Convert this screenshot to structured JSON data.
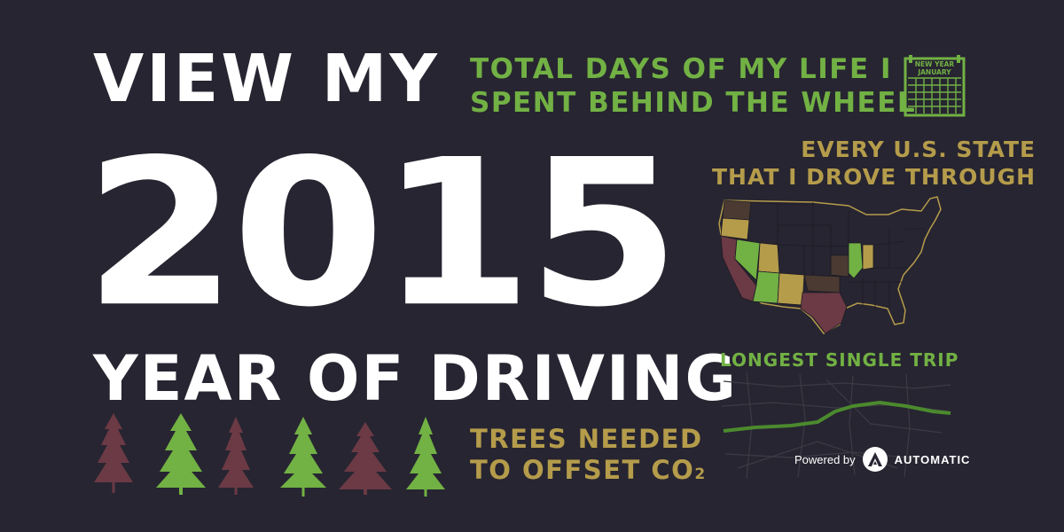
{
  "headline": {
    "line1": "VIEW MY",
    "year": "2015",
    "line2": "YEAR OF DRIVING"
  },
  "stats": {
    "days_line1": "TOTAL DAYS OF MY LIFE I",
    "days_line2": "SPENT BEHIND THE WHEEL",
    "states_line1": "EVERY U.S. STATE",
    "states_line2": "THAT I DROVE THROUGH",
    "trip_label": "LONGEST SINGLE TRIP",
    "trees_line1": "TREES NEEDED",
    "trees_line2": "TO OFFSET CO",
    "trees_subscript": "2"
  },
  "calendar": {
    "top_text": "NEW YEAR",
    "month": "JANUARY",
    "icon": "calendar-icon"
  },
  "footer": {
    "powered_by": "Powered by",
    "brand": "AUTOMATIC"
  },
  "colors": {
    "background": "#272531",
    "green": "#72b144",
    "gold": "#b59c4b",
    "maroon": "#6b3a45",
    "brown": "#4a3a32"
  },
  "icons": [
    "calendar-icon",
    "us-map",
    "route-map",
    "pine-tree-icon",
    "automatic-logo-icon"
  ]
}
